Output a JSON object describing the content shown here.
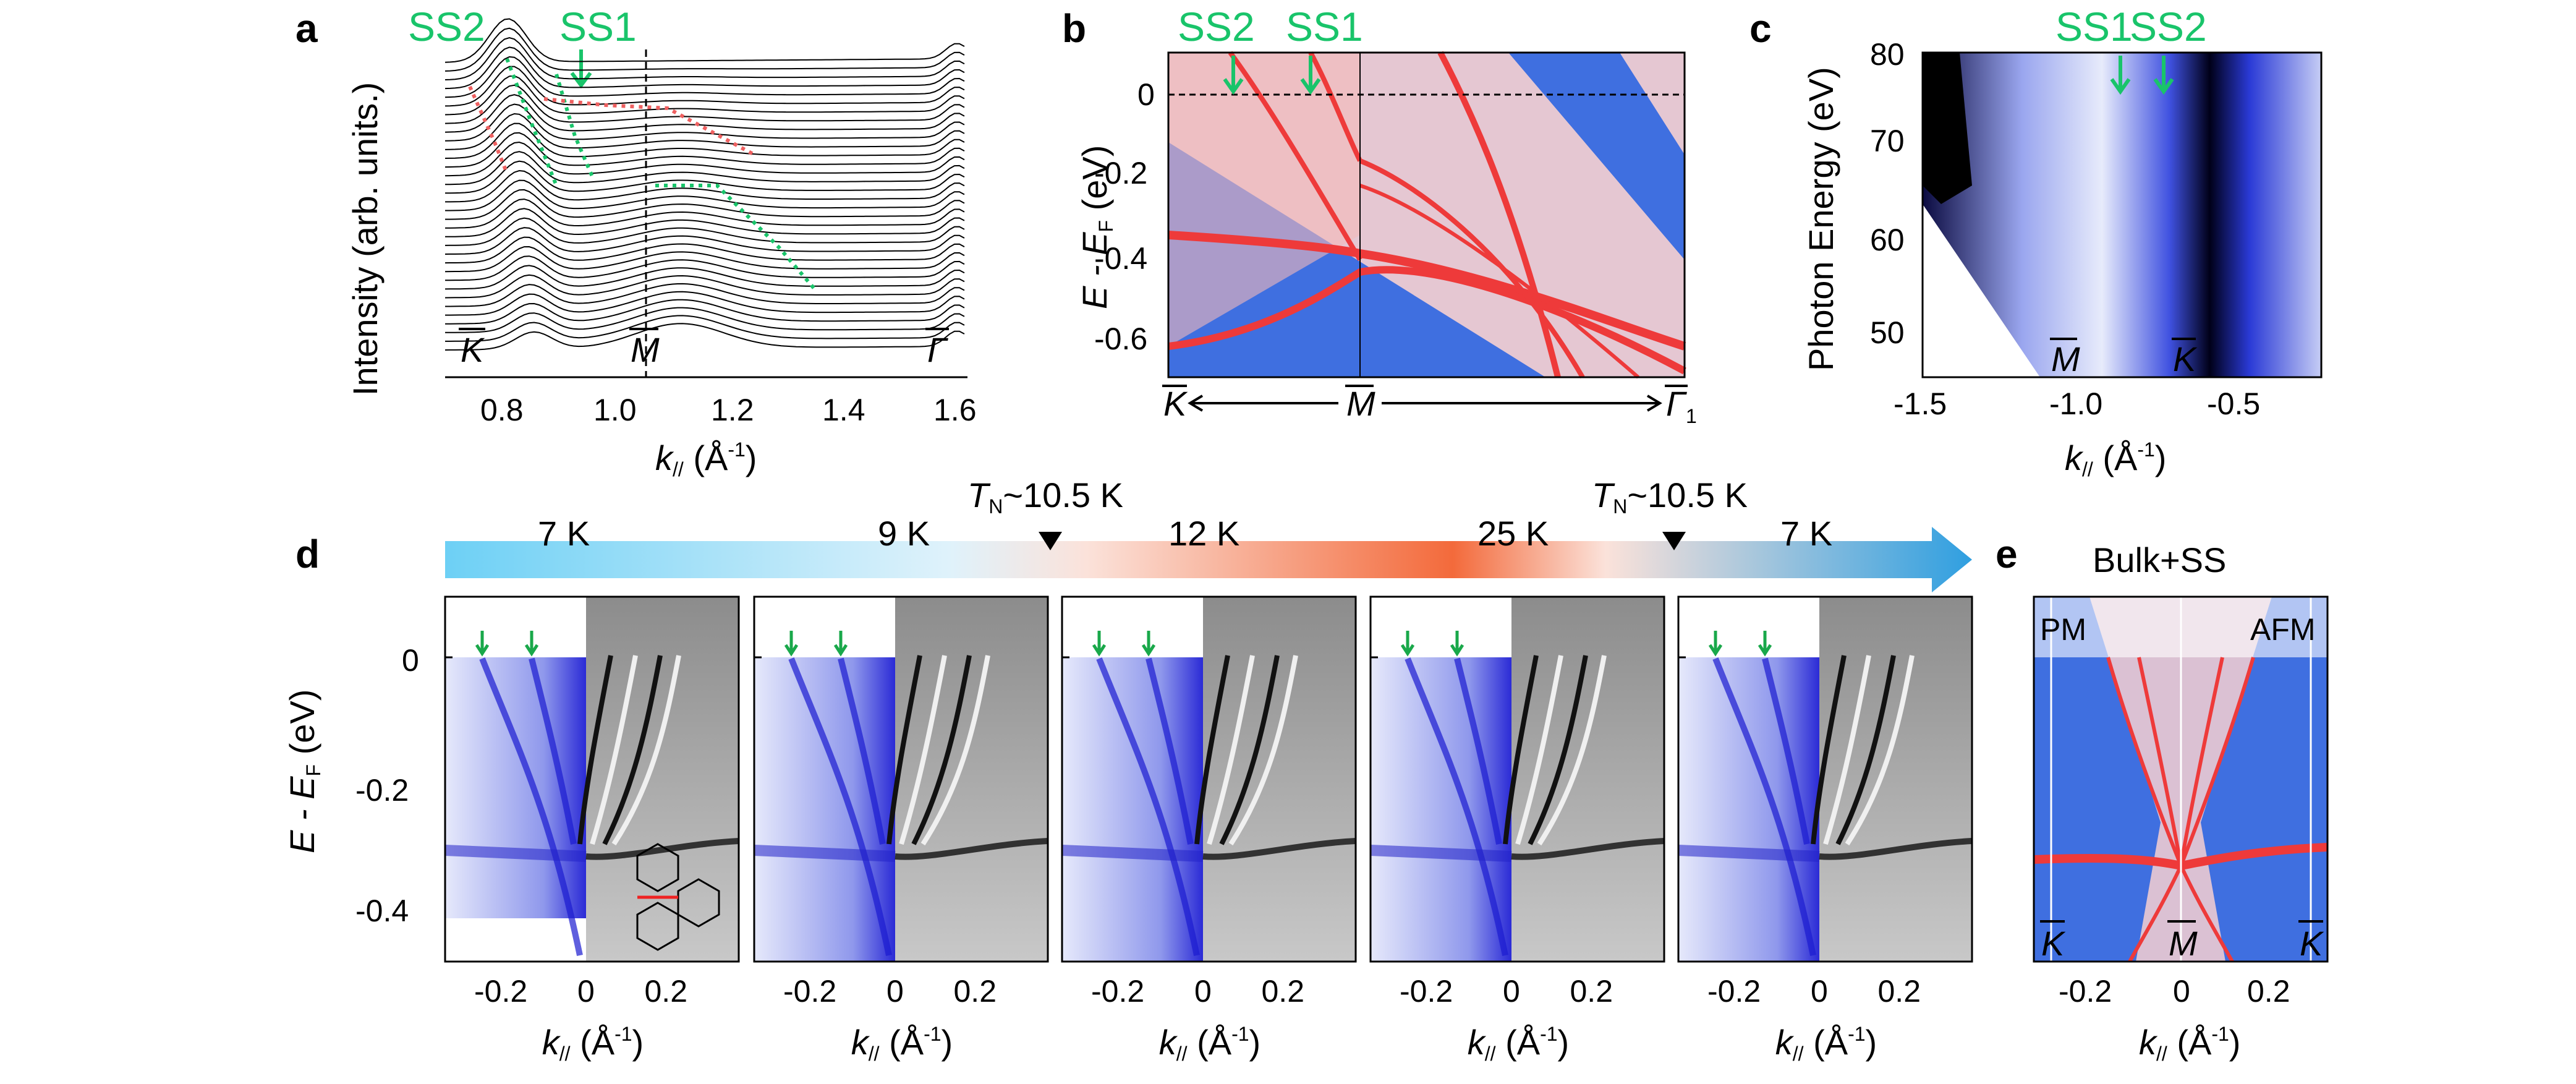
{
  "figure": {
    "panel_a": {
      "letter": "a",
      "ylabel": "Intensity (arb. units.)",
      "xlabel_main": "k",
      "xlabel_sub": "//",
      "xlabel_unit": " (Å",
      "xlabel_sup": "-1",
      "xlabel_close": ")",
      "xticks": [
        "0.8",
        "1.0",
        "1.2",
        "1.4",
        "1.6"
      ],
      "ss2": "SS2",
      "ss1": "SS1",
      "point_k": "K",
      "point_m": "M",
      "point_g": "Γ"
    },
    "panel_b": {
      "letter": "b",
      "ylabel": "E - E",
      "ylabel_sub": "F",
      "ylabel_unit": " (eV)",
      "yticks": [
        "0",
        "-0.2",
        "-0.4",
        "-0.6"
      ],
      "ss2": "SS2",
      "ss1": "SS1",
      "point_k": "K",
      "point_m": "M",
      "point_g": "Γ",
      "point_g_sub": "1"
    },
    "panel_c": {
      "letter": "c",
      "ylabel": "Photon Energy (eV)",
      "yticks": [
        "80",
        "70",
        "60",
        "50"
      ],
      "xticks": [
        "-1.5",
        "-1.0",
        "-0.5"
      ],
      "xlabel_main": "k",
      "xlabel_sub": "//",
      "xlabel_unit": " (Å",
      "xlabel_sup": "-1",
      "xlabel_close": ")",
      "ss1": "SS1",
      "ss2": "SS2",
      "point_m": "M",
      "point_k": "K"
    },
    "panel_d": {
      "letter": "d",
      "ylabel": "E - E",
      "ylabel_sub": "F",
      "ylabel_unit": " (eV)",
      "yticks": [
        "0",
        "-0.2",
        "-0.4"
      ],
      "temperatures": [
        "7 K",
        "9 K",
        "12 K",
        "25 K",
        "7 K"
      ],
      "tn_label": "T",
      "tn_sub": "N",
      "tn_value": "~10.5 K",
      "xticks": [
        "-0.2",
        "0",
        "0.2"
      ],
      "xlabel_main": "k",
      "xlabel_sub": "//",
      "xlabel_unit": " (Å",
      "xlabel_sup": "-1",
      "xlabel_close": ")"
    },
    "panel_e": {
      "letter": "e",
      "title": "Bulk+SS",
      "pm": "PM",
      "afm": "AFM",
      "point_k": "K",
      "point_m": "M",
      "xticks": [
        "-0.2",
        "0",
        "0.2"
      ],
      "xlabel_main": "k",
      "xlabel_sub": "//",
      "xlabel_unit": " (Å",
      "xlabel_sup": "-1",
      "xlabel_close": ")"
    },
    "colors": {
      "ss_green": "#19c46a",
      "band_red": "#ee3a3a",
      "arpes_blue": "#2b2bd6",
      "bg_blue": "#3f6fe0",
      "arrow_cold": "#6dd0f5",
      "arrow_hot": "#f36a3b"
    }
  }
}
